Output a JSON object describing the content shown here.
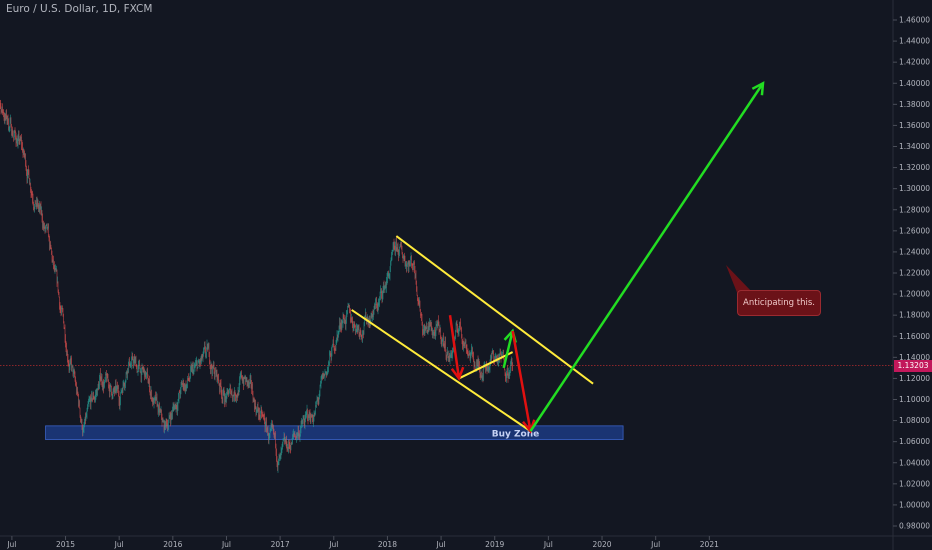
{
  "title": "Euro / U.S. Dollar, 1D, FXCM",
  "current_price": "1.13203",
  "note": "Anticipating this.",
  "zone_label": "Buy Zone",
  "colors": {
    "background": "#131722",
    "up": "#26a69a",
    "down": "#ef5350",
    "channel": "#ffeb3b",
    "bull_arrow": "#22dd22",
    "bear_arrow": "#e01010",
    "zone": "#1e3f8f",
    "price_line": "#d32f2f"
  },
  "chart_data": {
    "type": "candlestick",
    "x_ticks": [
      "Jul",
      "2015",
      "Jul",
      "2016",
      "Jul",
      "2017",
      "Jul",
      "2018",
      "Jul",
      "2019",
      "Jul",
      "2020",
      "Jul",
      "2021"
    ],
    "y_ticks": [
      "1.46000",
      "1.44000",
      "1.42000",
      "1.40000",
      "1.38000",
      "1.36000",
      "1.34000",
      "1.32000",
      "1.30000",
      "1.28000",
      "1.26000",
      "1.24000",
      "1.22000",
      "1.20000",
      "1.18000",
      "1.16000",
      "1.14000",
      "1.12000",
      "1.10000",
      "1.08000",
      "1.06000",
      "1.04000",
      "1.02000",
      "1.00000",
      "0.98000"
    ],
    "ylim": [
      0.98,
      1.46
    ],
    "price_path": [
      {
        "t": "2014-05",
        "p": 1.39
      },
      {
        "t": "2014-08",
        "p": 1.34
      },
      {
        "t": "2014-11",
        "p": 1.25
      },
      {
        "t": "2015-01",
        "p": 1.16
      },
      {
        "t": "2015-03",
        "p": 1.07
      },
      {
        "t": "2015-05",
        "p": 1.12
      },
      {
        "t": "2015-07",
        "p": 1.1
      },
      {
        "t": "2015-08",
        "p": 1.14
      },
      {
        "t": "2015-10",
        "p": 1.12
      },
      {
        "t": "2015-12",
        "p": 1.07
      },
      {
        "t": "2016-02",
        "p": 1.11
      },
      {
        "t": "2016-05",
        "p": 1.14
      },
      {
        "t": "2016-07",
        "p": 1.1
      },
      {
        "t": "2016-09",
        "p": 1.12
      },
      {
        "t": "2016-11",
        "p": 1.08
      },
      {
        "t": "2017-01",
        "p": 1.04
      },
      {
        "t": "2017-03",
        "p": 1.07
      },
      {
        "t": "2017-05",
        "p": 1.09
      },
      {
        "t": "2017-06",
        "p": 1.12
      },
      {
        "t": "2017-08",
        "p": 1.18
      },
      {
        "t": "2017-10",
        "p": 1.17
      },
      {
        "t": "2017-12",
        "p": 1.19
      },
      {
        "t": "2018-02",
        "p": 1.24
      },
      {
        "t": "2018-04",
        "p": 1.23
      },
      {
        "t": "2018-05",
        "p": 1.17
      },
      {
        "t": "2018-07",
        "p": 1.16
      },
      {
        "t": "2018-08",
        "p": 1.14
      },
      {
        "t": "2018-09",
        "p": 1.17
      },
      {
        "t": "2018-11",
        "p": 1.13
      },
      {
        "t": "2019-01",
        "p": 1.14
      },
      {
        "t": "2019-03",
        "p": 1.13
      }
    ],
    "buy_zone": [
      1.062,
      1.075
    ],
    "channel_upper": [
      {
        "t": "2018-02",
        "p": 1.255
      },
      {
        "t": "2019-12",
        "p": 1.115
      }
    ],
    "channel_lower": [
      {
        "t": "2017-09",
        "p": 1.185
      },
      {
        "t": "2019-05",
        "p": 1.07
      }
    ],
    "projection": [
      {
        "t": "2019-02",
        "p": 1.13,
        "c": "bull_arrow"
      },
      {
        "t": "2019-03",
        "p": 1.165,
        "c": "bull_arrow"
      },
      {
        "t": "2019-03",
        "p": 1.165,
        "c": "bear_arrow"
      },
      {
        "t": "2019-05",
        "p": 1.07,
        "c": "bear_arrow"
      },
      {
        "t": "2019-05",
        "p": 1.07,
        "c": "bull_arrow"
      },
      {
        "t": "2021-07",
        "p": 1.4,
        "c": "bull_arrow"
      }
    ]
  }
}
